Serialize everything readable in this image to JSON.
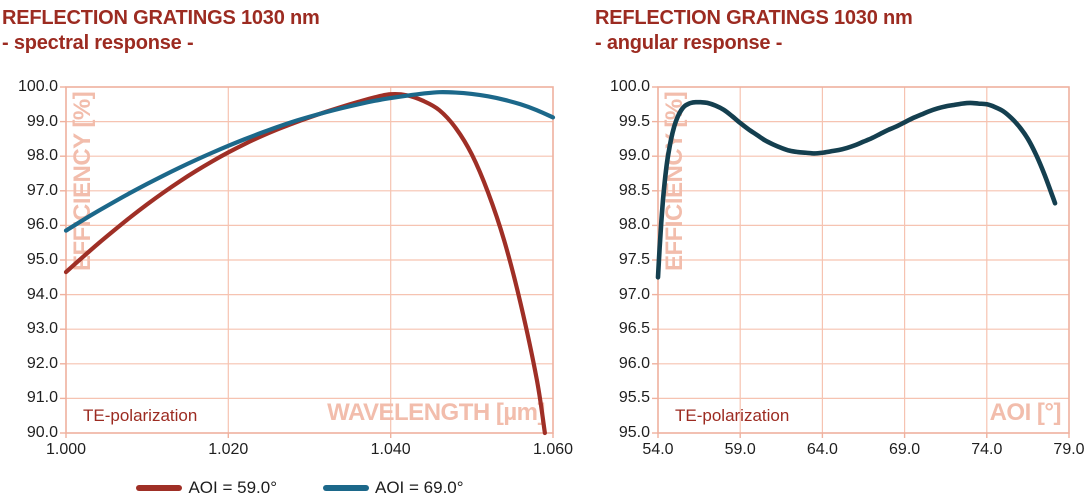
{
  "page": {
    "background": "#ffffff"
  },
  "colors": {
    "title": "#9c2b21",
    "grid": "#f6c3b1",
    "axis_border": "#efb19e",
    "watermark": "#f2bdac",
    "tick_text": "#1f1f1f",
    "annotation": "#9c2b21",
    "series_red": "#9f2f26",
    "series_teal": "#1c688a",
    "series_dark_petrol": "#143f4f"
  },
  "legend": {
    "items": [
      {
        "label": "AOI = 59.0°",
        "color": "#9f2f26"
      },
      {
        "label": "AOI = 69.0°",
        "color": "#1c688a"
      }
    ]
  },
  "chart_data": [
    {
      "type": "line",
      "title": "REFLECTION GRATINGS 1030 nm",
      "subtitle": "- spectral response -",
      "xlabel": "WAVELENGTH [µm]",
      "ylabel": "EFFICIENCY [%]",
      "annotation": "TE-polarization",
      "grid": true,
      "legend_position": "bottom",
      "xlim": [
        1.0,
        1.06
      ],
      "ylim": [
        90.0,
        100.0
      ],
      "y_step": 1.0,
      "xticks": [
        1.0,
        1.02,
        1.04,
        1.06
      ],
      "x_tick_labels": [
        "1.000",
        "1.020",
        "1.040",
        "1.060"
      ],
      "y_tick_labels": [
        "100.0",
        "99.0",
        "98.0",
        "97.0",
        "96.0",
        "95.0",
        "94.0",
        "93.0",
        "92.0",
        "91.0",
        "90.0"
      ],
      "series": [
        {
          "name": "AOI = 59.0°",
          "color": "#9f2f26",
          "x": [
            1.0,
            1.002,
            1.004,
            1.006,
            1.008,
            1.01,
            1.012,
            1.014,
            1.016,
            1.018,
            1.02,
            1.022,
            1.024,
            1.026,
            1.028,
            1.03,
            1.032,
            1.034,
            1.036,
            1.038,
            1.04,
            1.042,
            1.044,
            1.046,
            1.048,
            1.05,
            1.052,
            1.054,
            1.056,
            1.058,
            1.059
          ],
          "y": [
            94.65,
            95.07,
            95.48,
            95.87,
            96.25,
            96.61,
            96.95,
            97.27,
            97.57,
            97.85,
            98.11,
            98.35,
            98.57,
            98.77,
            98.95,
            99.12,
            99.28,
            99.43,
            99.57,
            99.7,
            99.79,
            99.76,
            99.6,
            99.33,
            98.82,
            98.05,
            96.95,
            95.55,
            93.75,
            91.55,
            90.0
          ]
        },
        {
          "name": "AOI = 69.0°",
          "color": "#1c688a",
          "x": [
            1.0,
            1.002,
            1.004,
            1.006,
            1.008,
            1.01,
            1.012,
            1.014,
            1.016,
            1.018,
            1.02,
            1.022,
            1.024,
            1.026,
            1.028,
            1.03,
            1.032,
            1.034,
            1.036,
            1.038,
            1.04,
            1.042,
            1.044,
            1.046,
            1.048,
            1.05,
            1.052,
            1.054,
            1.056,
            1.058,
            1.06
          ],
          "y": [
            95.85,
            96.14,
            96.42,
            96.69,
            96.95,
            97.2,
            97.44,
            97.67,
            97.89,
            98.1,
            98.3,
            98.49,
            98.67,
            98.84,
            99.0,
            99.14,
            99.27,
            99.39,
            99.5,
            99.6,
            99.68,
            99.75,
            99.81,
            99.85,
            99.84,
            99.8,
            99.73,
            99.63,
            99.5,
            99.33,
            99.12
          ]
        }
      ]
    },
    {
      "type": "line",
      "title": "REFLECTION GRATINGS 1030 nm",
      "subtitle": "- angular response -",
      "xlabel": "AOI [°]",
      "ylabel": "EFFICIENCY [%]",
      "annotation": "TE-polarization",
      "grid": true,
      "legend_position": "none",
      "xlim": [
        54.0,
        79.0
      ],
      "ylim": [
        95.0,
        100.0
      ],
      "y_step": 0.5,
      "xticks": [
        54.0,
        59.0,
        64.0,
        69.0,
        74.0,
        79.0
      ],
      "x_tick_labels": [
        "54.0",
        "59.0",
        "64.0",
        "69.0",
        "74.0",
        "79.0"
      ],
      "y_tick_labels": [
        "100.0",
        "99.5",
        "99.0",
        "98.5",
        "98.0",
        "97.5",
        "97.0",
        "96.5",
        "96.0",
        "95.5",
        "95.0"
      ],
      "series": [
        {
          "color": "#143f4f",
          "x": [
            54.0,
            54.1,
            54.2,
            54.3,
            54.4,
            54.5,
            54.6,
            54.8,
            55.0,
            55.2,
            55.4,
            55.6,
            55.8,
            56.0,
            56.3,
            56.6,
            57.0,
            57.5,
            58.0,
            58.5,
            59.0,
            59.5,
            60.0,
            60.5,
            61.0,
            61.5,
            62.0,
            62.5,
            63.0,
            63.5,
            64.0,
            64.5,
            65.0,
            65.5,
            66.0,
            66.5,
            67.0,
            67.5,
            68.0,
            68.5,
            69.0,
            69.5,
            70.0,
            70.5,
            71.0,
            71.5,
            72.0,
            72.5,
            73.0,
            73.5,
            74.0,
            74.5,
            75.0,
            75.5,
            76.0,
            76.5,
            77.0,
            77.5,
            78.0,
            78.15
          ],
          "y": [
            97.25,
            97.68,
            98.05,
            98.36,
            98.61,
            98.82,
            98.99,
            99.25,
            99.44,
            99.57,
            99.66,
            99.72,
            99.75,
            99.77,
            99.78,
            99.78,
            99.77,
            99.73,
            99.67,
            99.58,
            99.48,
            99.39,
            99.31,
            99.23,
            99.17,
            99.12,
            99.08,
            99.06,
            99.05,
            99.04,
            99.05,
            99.07,
            99.09,
            99.12,
            99.16,
            99.21,
            99.26,
            99.32,
            99.38,
            99.43,
            99.49,
            99.55,
            99.6,
            99.65,
            99.69,
            99.72,
            99.74,
            99.76,
            99.77,
            99.76,
            99.75,
            99.71,
            99.65,
            99.55,
            99.42,
            99.25,
            99.02,
            98.74,
            98.42,
            98.32
          ]
        }
      ]
    }
  ]
}
